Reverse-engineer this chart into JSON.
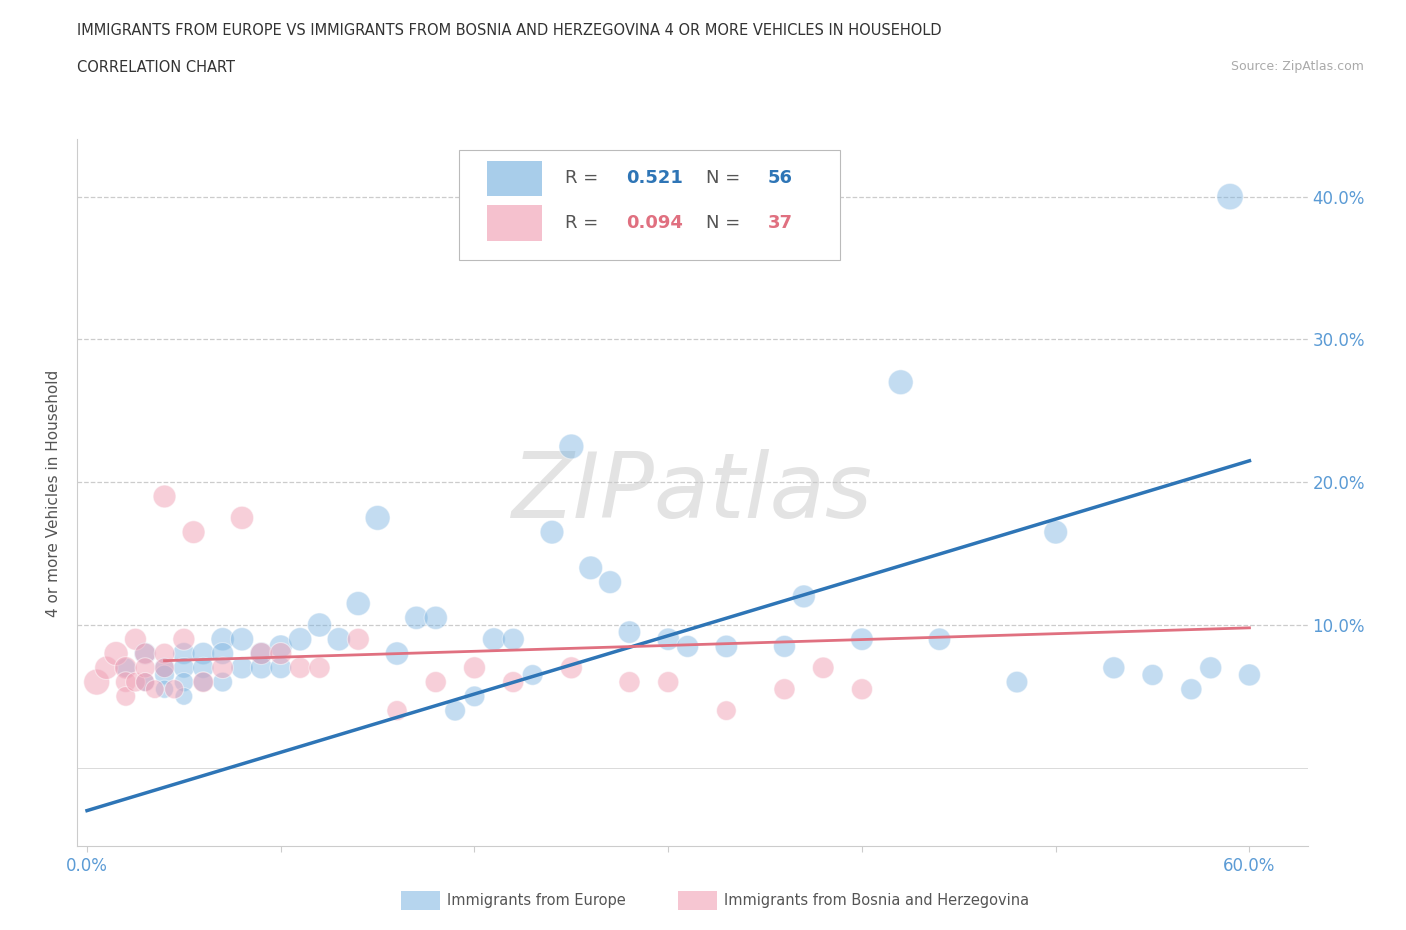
{
  "title_line1": "IMMIGRANTS FROM EUROPE VS IMMIGRANTS FROM BOSNIA AND HERZEGOVINA 4 OR MORE VEHICLES IN HOUSEHOLD",
  "title_line2": "CORRELATION CHART",
  "source": "Source: ZipAtlas.com",
  "ylabel": "4 or more Vehicles in Household",
  "xlim": [
    -0.005,
    0.63
  ],
  "ylim": [
    -0.055,
    0.44
  ],
  "x_ticks": [
    0.0,
    0.1,
    0.2,
    0.3,
    0.4,
    0.5,
    0.6
  ],
  "y_ticks": [
    0.0,
    0.1,
    0.2,
    0.3,
    0.4
  ],
  "y_tick_labels": [
    "",
    "10.0%",
    "20.0%",
    "30.0%",
    "40.0%"
  ],
  "gridline_y": [
    0.1,
    0.2,
    0.3,
    0.4
  ],
  "blue_color": "#7ab3e0",
  "pink_color": "#f0a0b5",
  "blue_line_color": "#2e75b6",
  "pink_line_color": "#e07080",
  "legend_R1": "0.521",
  "legend_N1": "56",
  "legend_R2": "0.094",
  "legend_N2": "37",
  "watermark": "ZIPatlas",
  "blue_scatter_x": [
    0.02,
    0.03,
    0.03,
    0.04,
    0.04,
    0.04,
    0.05,
    0.05,
    0.05,
    0.05,
    0.06,
    0.06,
    0.06,
    0.07,
    0.07,
    0.07,
    0.08,
    0.08,
    0.09,
    0.09,
    0.1,
    0.1,
    0.11,
    0.12,
    0.13,
    0.14,
    0.15,
    0.16,
    0.17,
    0.18,
    0.19,
    0.2,
    0.21,
    0.22,
    0.23,
    0.24,
    0.25,
    0.26,
    0.27,
    0.28,
    0.3,
    0.31,
    0.33,
    0.36,
    0.37,
    0.4,
    0.42,
    0.44,
    0.48,
    0.5,
    0.53,
    0.55,
    0.57,
    0.58,
    0.59,
    0.6
  ],
  "blue_scatter_y": [
    0.07,
    0.08,
    0.06,
    0.07,
    0.065,
    0.055,
    0.08,
    0.07,
    0.06,
    0.05,
    0.08,
    0.07,
    0.06,
    0.09,
    0.08,
    0.06,
    0.09,
    0.07,
    0.08,
    0.07,
    0.085,
    0.07,
    0.09,
    0.1,
    0.09,
    0.115,
    0.175,
    0.08,
    0.105,
    0.105,
    0.04,
    0.05,
    0.09,
    0.09,
    0.065,
    0.165,
    0.225,
    0.14,
    0.13,
    0.095,
    0.09,
    0.085,
    0.085,
    0.085,
    0.12,
    0.09,
    0.27,
    0.09,
    0.06,
    0.165,
    0.07,
    0.065,
    0.055,
    0.07,
    0.4,
    0.065
  ],
  "blue_scatter_sizes": [
    200,
    250,
    180,
    220,
    200,
    170,
    250,
    220,
    190,
    160,
    260,
    230,
    200,
    280,
    250,
    200,
    280,
    250,
    270,
    250,
    270,
    240,
    280,
    300,
    280,
    300,
    320,
    280,
    280,
    280,
    220,
    220,
    270,
    250,
    220,
    290,
    320,
    290,
    270,
    260,
    260,
    250,
    260,
    250,
    270,
    260,
    320,
    260,
    240,
    290,
    250,
    230,
    230,
    250,
    360,
    250
  ],
  "pink_scatter_x": [
    0.005,
    0.01,
    0.015,
    0.02,
    0.02,
    0.02,
    0.025,
    0.025,
    0.03,
    0.03,
    0.03,
    0.035,
    0.04,
    0.04,
    0.04,
    0.045,
    0.05,
    0.055,
    0.06,
    0.07,
    0.08,
    0.09,
    0.1,
    0.11,
    0.12,
    0.14,
    0.16,
    0.18,
    0.2,
    0.22,
    0.25,
    0.28,
    0.3,
    0.33,
    0.36,
    0.38,
    0.4
  ],
  "pink_scatter_y": [
    0.06,
    0.07,
    0.08,
    0.07,
    0.06,
    0.05,
    0.09,
    0.06,
    0.08,
    0.07,
    0.06,
    0.055,
    0.19,
    0.08,
    0.07,
    0.055,
    0.09,
    0.165,
    0.06,
    0.07,
    0.175,
    0.08,
    0.08,
    0.07,
    0.07,
    0.09,
    0.04,
    0.06,
    0.07,
    0.06,
    0.07,
    0.06,
    0.06,
    0.04,
    0.055,
    0.07,
    0.055
  ],
  "pink_scatter_sizes": [
    350,
    280,
    300,
    260,
    220,
    200,
    250,
    200,
    230,
    210,
    190,
    180,
    270,
    220,
    200,
    190,
    250,
    270,
    220,
    240,
    280,
    250,
    250,
    230,
    230,
    250,
    210,
    230,
    250,
    230,
    250,
    230,
    230,
    200,
    230,
    240,
    230
  ],
  "blue_trend_x": [
    0.0,
    0.6
  ],
  "blue_trend_y": [
    -0.03,
    0.215
  ],
  "pink_trend_x": [
    0.04,
    0.6
  ],
  "pink_trend_y": [
    0.075,
    0.098
  ],
  "tick_color": "#5b9bd5",
  "axis_color": "#cccccc",
  "left_border_color": "#cccccc"
}
